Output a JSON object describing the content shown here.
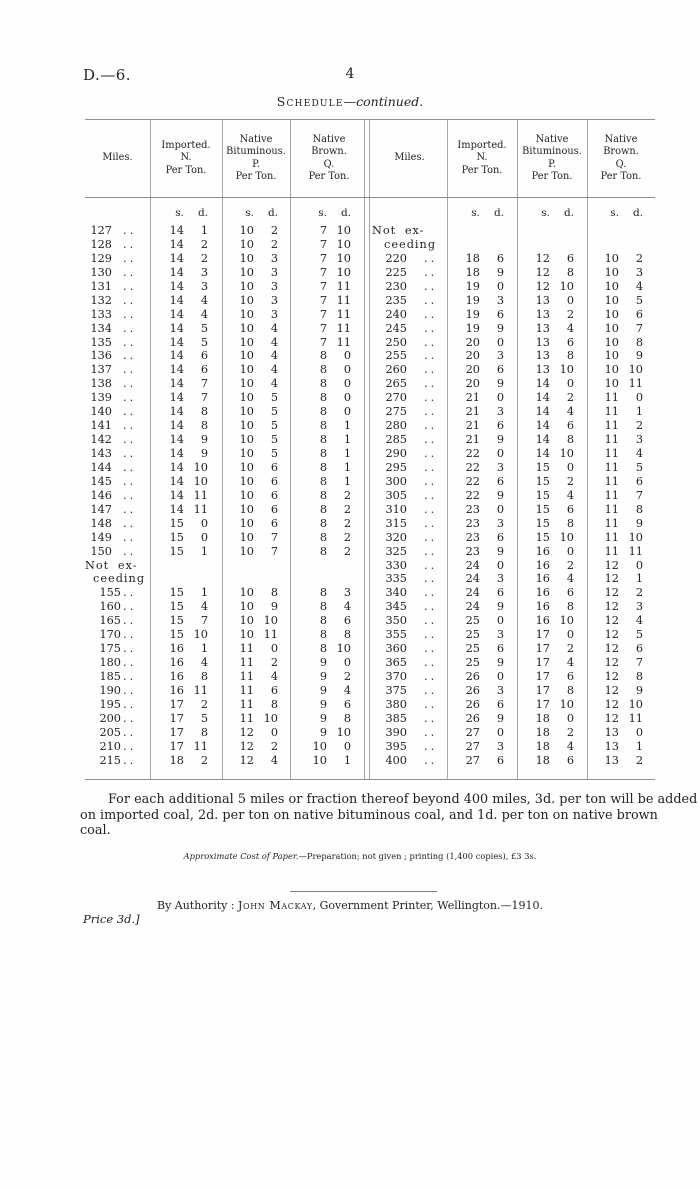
{
  "page": {
    "doc_ref": "D.—6.",
    "page_number": "4",
    "title": {
      "word": "Schedule",
      "dash": "—",
      "cont": "continued."
    }
  },
  "table": {
    "col_headers": {
      "miles": "Miles.",
      "imported": [
        "Imported.",
        "N.",
        "Per Ton."
      ],
      "bituminous": [
        "Native",
        "Bituminous.",
        "P.",
        "Per Ton."
      ],
      "brown": [
        "Native",
        "Brown.",
        "Q.",
        "Per Ton."
      ]
    },
    "units": {
      "s": "s.",
      "d": "d."
    },
    "dots": "..",
    "not_exceeding": [
      "Not ex-",
      "ceeding"
    ],
    "left_lines": [
      {
        "m": "127",
        "v": [
          "14",
          "1",
          "10",
          "2",
          "7",
          "10"
        ]
      },
      {
        "m": "128",
        "v": [
          "14",
          "2",
          "10",
          "2",
          "7",
          "10"
        ]
      },
      {
        "m": "129",
        "v": [
          "14",
          "2",
          "10",
          "3",
          "7",
          "10"
        ]
      },
      {
        "m": "130",
        "v": [
          "14",
          "3",
          "10",
          "3",
          "7",
          "10"
        ]
      },
      {
        "m": "131",
        "v": [
          "14",
          "3",
          "10",
          "3",
          "7",
          "11"
        ]
      },
      {
        "m": "132",
        "v": [
          "14",
          "4",
          "10",
          "3",
          "7",
          "11"
        ]
      },
      {
        "m": "133",
        "v": [
          "14",
          "4",
          "10",
          "3",
          "7",
          "11"
        ]
      },
      {
        "m": "134",
        "v": [
          "14",
          "5",
          "10",
          "4",
          "7",
          "11"
        ]
      },
      {
        "m": "135",
        "v": [
          "14",
          "5",
          "10",
          "4",
          "7",
          "11"
        ]
      },
      {
        "m": "136",
        "v": [
          "14",
          "6",
          "10",
          "4",
          "8",
          "0"
        ]
      },
      {
        "m": "137",
        "v": [
          "14",
          "6",
          "10",
          "4",
          "8",
          "0"
        ]
      },
      {
        "m": "138",
        "v": [
          "14",
          "7",
          "10",
          "4",
          "8",
          "0"
        ]
      },
      {
        "m": "139",
        "v": [
          "14",
          "7",
          "10",
          "5",
          "8",
          "0"
        ]
      },
      {
        "m": "140",
        "v": [
          "14",
          "8",
          "10",
          "5",
          "8",
          "0"
        ]
      },
      {
        "m": "141",
        "v": [
          "14",
          "8",
          "10",
          "5",
          "8",
          "1"
        ]
      },
      {
        "m": "142",
        "v": [
          "14",
          "9",
          "10",
          "5",
          "8",
          "1"
        ]
      },
      {
        "m": "143",
        "v": [
          "14",
          "9",
          "10",
          "5",
          "8",
          "1"
        ]
      },
      {
        "m": "144",
        "v": [
          "14",
          "10",
          "10",
          "6",
          "8",
          "1"
        ]
      },
      {
        "m": "145",
        "v": [
          "14",
          "10",
          "10",
          "6",
          "8",
          "1"
        ]
      },
      {
        "m": "146",
        "v": [
          "14",
          "11",
          "10",
          "6",
          "8",
          "2"
        ]
      },
      {
        "m": "147",
        "v": [
          "14",
          "11",
          "10",
          "6",
          "8",
          "2"
        ]
      },
      {
        "m": "148",
        "v": [
          "15",
          "0",
          "10",
          "6",
          "8",
          "2"
        ]
      },
      {
        "m": "149",
        "v": [
          "15",
          "0",
          "10",
          "7",
          "8",
          "2"
        ]
      },
      {
        "m": "150",
        "v": [
          "15",
          "1",
          "10",
          "7",
          "8",
          "2"
        ]
      },
      {
        "lbl": 0
      },
      {
        "lbl": 1
      },
      {
        "m": "155",
        "ind": true,
        "v": [
          "15",
          "1",
          "10",
          "8",
          "8",
          "3"
        ]
      },
      {
        "m": "160",
        "ind": true,
        "v": [
          "15",
          "4",
          "10",
          "9",
          "8",
          "4"
        ]
      },
      {
        "m": "165",
        "ind": true,
        "v": [
          "15",
          "7",
          "10",
          "10",
          "8",
          "6"
        ]
      },
      {
        "m": "170",
        "ind": true,
        "v": [
          "15",
          "10",
          "10",
          "11",
          "8",
          "8"
        ]
      },
      {
        "m": "175",
        "ind": true,
        "v": [
          "16",
          "1",
          "11",
          "0",
          "8",
          "10"
        ]
      },
      {
        "m": "180",
        "ind": true,
        "v": [
          "16",
          "4",
          "11",
          "2",
          "9",
          "0"
        ]
      },
      {
        "m": "185",
        "ind": true,
        "v": [
          "16",
          "8",
          "11",
          "4",
          "9",
          "2"
        ]
      },
      {
        "m": "190",
        "ind": true,
        "v": [
          "16",
          "11",
          "11",
          "6",
          "9",
          "4"
        ]
      },
      {
        "m": "195",
        "ind": true,
        "v": [
          "17",
          "2",
          "11",
          "8",
          "9",
          "6"
        ]
      },
      {
        "m": "200",
        "ind": true,
        "v": [
          "17",
          "5",
          "11",
          "10",
          "9",
          "8"
        ]
      },
      {
        "m": "205",
        "ind": true,
        "v": [
          "17",
          "8",
          "12",
          "0",
          "9",
          "10"
        ]
      },
      {
        "m": "210",
        "ind": true,
        "v": [
          "17",
          "11",
          "12",
          "2",
          "10",
          "0"
        ]
      },
      {
        "m": "215",
        "ind": true,
        "v": [
          "18",
          "2",
          "12",
          "4",
          "10",
          "1"
        ]
      }
    ],
    "right_lines": [
      {
        "lbl": 0
      },
      {
        "lbl": 1
      },
      {
        "m": "220",
        "v": [
          "18",
          "6",
          "12",
          "6",
          "10",
          "2"
        ]
      },
      {
        "m": "225",
        "v": [
          "18",
          "9",
          "12",
          "8",
          "10",
          "3"
        ]
      },
      {
        "m": "230",
        "v": [
          "19",
          "0",
          "12",
          "10",
          "10",
          "4"
        ]
      },
      {
        "m": "235",
        "v": [
          "19",
          "3",
          "13",
          "0",
          "10",
          "5"
        ]
      },
      {
        "m": "240",
        "v": [
          "19",
          "6",
          "13",
          "2",
          "10",
          "6"
        ]
      },
      {
        "m": "245",
        "v": [
          "19",
          "9",
          "13",
          "4",
          "10",
          "7"
        ]
      },
      {
        "m": "250",
        "v": [
          "20",
          "0",
          "13",
          "6",
          "10",
          "8"
        ]
      },
      {
        "m": "255",
        "v": [
          "20",
          "3",
          "13",
          "8",
          "10",
          "9"
        ]
      },
      {
        "m": "260",
        "v": [
          "20",
          "6",
          "13",
          "10",
          "10",
          "10"
        ]
      },
      {
        "m": "265",
        "v": [
          "20",
          "9",
          "14",
          "0",
          "10",
          "11"
        ]
      },
      {
        "m": "270",
        "v": [
          "21",
          "0",
          "14",
          "2",
          "11",
          "0"
        ]
      },
      {
        "m": "275",
        "v": [
          "21",
          "3",
          "14",
          "4",
          "11",
          "1"
        ]
      },
      {
        "m": "280",
        "v": [
          "21",
          "6",
          "14",
          "6",
          "11",
          "2"
        ]
      },
      {
        "m": "285",
        "v": [
          "21",
          "9",
          "14",
          "8",
          "11",
          "3"
        ]
      },
      {
        "m": "290",
        "v": [
          "22",
          "0",
          "14",
          "10",
          "11",
          "4"
        ]
      },
      {
        "m": "295",
        "v": [
          "22",
          "3",
          "15",
          "0",
          "11",
          "5"
        ]
      },
      {
        "m": "300",
        "v": [
          "22",
          "6",
          "15",
          "2",
          "11",
          "6"
        ]
      },
      {
        "m": "305",
        "v": [
          "22",
          "9",
          "15",
          "4",
          "11",
          "7"
        ]
      },
      {
        "m": "310",
        "v": [
          "23",
          "0",
          "15",
          "6",
          "11",
          "8"
        ]
      },
      {
        "m": "315",
        "v": [
          "23",
          "3",
          "15",
          "8",
          "11",
          "9"
        ]
      },
      {
        "m": "320",
        "v": [
          "23",
          "6",
          "15",
          "10",
          "11",
          "10"
        ]
      },
      {
        "m": "325",
        "v": [
          "23",
          "9",
          "16",
          "0",
          "11",
          "11"
        ]
      },
      {
        "m": "330",
        "v": [
          "24",
          "0",
          "16",
          "2",
          "12",
          "0"
        ]
      },
      {
        "m": "335",
        "v": [
          "24",
          "3",
          "16",
          "4",
          "12",
          "1"
        ]
      },
      {
        "m": "340",
        "v": [
          "24",
          "6",
          "16",
          "6",
          "12",
          "2"
        ]
      },
      {
        "m": "345",
        "v": [
          "24",
          "9",
          "16",
          "8",
          "12",
          "3"
        ]
      },
      {
        "m": "350",
        "v": [
          "25",
          "0",
          "16",
          "10",
          "12",
          "4"
        ]
      },
      {
        "m": "355",
        "v": [
          "25",
          "3",
          "17",
          "0",
          "12",
          "5"
        ]
      },
      {
        "m": "360",
        "v": [
          "25",
          "6",
          "17",
          "2",
          "12",
          "6"
        ]
      },
      {
        "m": "365",
        "v": [
          "25",
          "9",
          "17",
          "4",
          "12",
          "7"
        ]
      },
      {
        "m": "370",
        "v": [
          "26",
          "0",
          "17",
          "6",
          "12",
          "8"
        ]
      },
      {
        "m": "375",
        "v": [
          "26",
          "3",
          "17",
          "8",
          "12",
          "9"
        ]
      },
      {
        "m": "380",
        "v": [
          "26",
          "6",
          "17",
          "10",
          "12",
          "10"
        ]
      },
      {
        "m": "385",
        "v": [
          "26",
          "9",
          "18",
          "0",
          "12",
          "11"
        ]
      },
      {
        "m": "390",
        "v": [
          "27",
          "0",
          "18",
          "2",
          "13",
          "0"
        ]
      },
      {
        "m": "395",
        "v": [
          "27",
          "3",
          "18",
          "4",
          "13",
          "1"
        ]
      },
      {
        "m": "400",
        "v": [
          "27",
          "6",
          "18",
          "6",
          "13",
          "2"
        ]
      }
    ]
  },
  "footnote": {
    "line1": "For each additional 5 miles or fraction thereof beyond 400 miles, 3d. per ton will be added",
    "line2": "on imported coal, 2d. per ton on native bituminous coal, and 1d. per ton on native brown coal."
  },
  "cost_note": {
    "italic": "Approximate Cost of Paper.—",
    "roman": "Preparation; not given ; printing (1,400 copies), £3 3s."
  },
  "imprint": {
    "prefix": "By Authority : ",
    "name": "John Mackay",
    "suffix": ", Government Printer, Wellington.—1910."
  },
  "price": "Price 3d.]"
}
